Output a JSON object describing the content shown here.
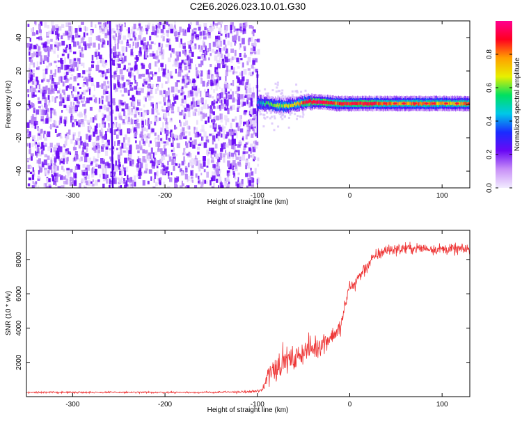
{
  "title": "C2E6.2026.023.10.01.G30",
  "colors": {
    "snr_line": "#ee3333",
    "colormap": [
      "#f2ecff",
      "#c890f7",
      "#6a08f5",
      "#1a2cff",
      "#00c8e8",
      "#00e060",
      "#e8f000",
      "#ffa000",
      "#ff0020",
      "#ff0090"
    ]
  },
  "chart_data": [
    {
      "type": "heatmap",
      "name": "spectrogram",
      "xlabel": "Height of straight line (km)",
      "ylabel": "Frequency (Hz)",
      "xlim": [
        -350,
        130
      ],
      "ylim": [
        -50,
        50
      ],
      "xticks": [
        -300,
        -200,
        -100,
        0,
        100
      ],
      "yticks": [
        -40,
        -20,
        0,
        20,
        40
      ],
      "colorbar": {
        "label": "Normalized spectral amplitude",
        "range": [
          0,
          1
        ],
        "ticks": [
          0.0,
          0.2,
          0.4,
          0.6,
          0.8
        ]
      },
      "noise_region_x": [
        -350,
        -100
      ],
      "dark_vertical_line_x": -258,
      "signal_band": [
        {
          "x": -100,
          "y": 1.0,
          "amplitude": 0.4
        },
        {
          "x": -90,
          "y": 0.5,
          "amplitude": 0.55
        },
        {
          "x": -75,
          "y": -1.0,
          "amplitude": 0.6
        },
        {
          "x": -60,
          "y": 0.0,
          "amplitude": 0.7
        },
        {
          "x": -45,
          "y": 1.5,
          "amplitude": 0.9
        },
        {
          "x": -30,
          "y": 1.5,
          "amplitude": 0.95
        },
        {
          "x": -15,
          "y": 0.5,
          "amplitude": 0.85
        },
        {
          "x": 0,
          "y": 0.5,
          "amplitude": 0.9
        },
        {
          "x": 25,
          "y": 0.5,
          "amplitude": 0.9
        },
        {
          "x": 50,
          "y": 0.5,
          "amplitude": 0.75
        },
        {
          "x": 75,
          "y": 0.5,
          "amplitude": 0.8
        },
        {
          "x": 100,
          "y": 0.5,
          "amplitude": 0.75
        },
        {
          "x": 130,
          "y": 0.5,
          "amplitude": 0.8
        }
      ]
    },
    {
      "type": "line",
      "name": "snr",
      "xlabel": "Height of straight line (km)",
      "ylabel": "SNR (10 * v/v)",
      "xlim": [
        -350,
        130
      ],
      "ylim": [
        0,
        9700
      ],
      "xticks": [
        -300,
        -200,
        -100,
        0,
        100
      ],
      "yticks": [
        2000,
        4000,
        6000,
        8000
      ],
      "series": [
        {
          "x": [
            -350,
            -300,
            -250,
            -200,
            -150,
            -110,
            -95,
            -88,
            -80,
            -70,
            -60,
            -50,
            -40,
            -30,
            -20,
            -10,
            -5,
            0,
            5,
            10,
            20,
            30,
            40,
            50,
            60,
            80,
            100,
            130
          ],
          "y": [
            250,
            250,
            250,
            250,
            250,
            280,
            350,
            1400,
            1700,
            2200,
            2100,
            2700,
            2800,
            3100,
            3500,
            4000,
            5300,
            6500,
            6500,
            7000,
            7700,
            8300,
            8550,
            8600,
            8650,
            8650,
            8600,
            8600
          ],
          "noise_amplitude": [
            60,
            60,
            60,
            60,
            60,
            80,
            150,
            900,
            900,
            900,
            800,
            900,
            800,
            800,
            700,
            600,
            500,
            500,
            500,
            500,
            500,
            450,
            450,
            400,
            400,
            400,
            380,
            380
          ]
        }
      ]
    }
  ]
}
